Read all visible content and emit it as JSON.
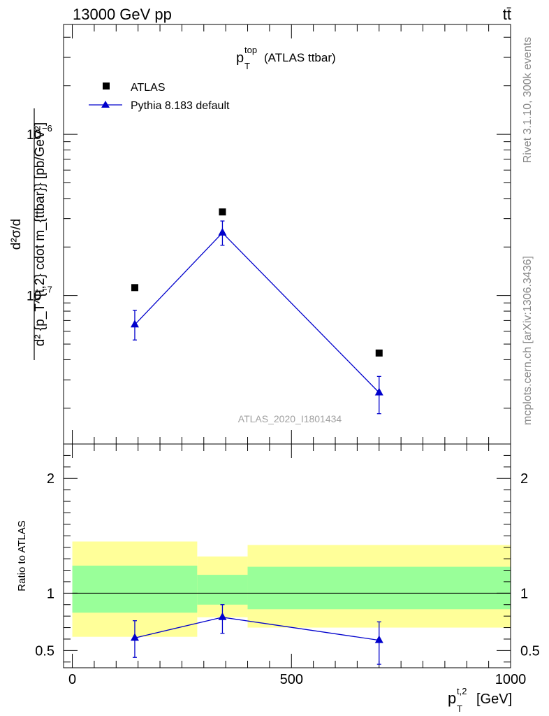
{
  "header": {
    "left": "13000 GeV pp",
    "right": "tt̄"
  },
  "side_labels": {
    "rivet": "Rivet 3.1.10,  300k events",
    "mcplots": "mcplots.cern.ch [arXiv:1306.3436]"
  },
  "chart_data": [
    {
      "type": "scatter",
      "panel": "main",
      "title_main": "p",
      "title_sup": "top",
      "title_sub": "T",
      "title_rest": "(ATLAS ttbar)",
      "watermark": "ATLAS_2020_I1801434",
      "yscale": "log",
      "ylim": [
        1.2e-08,
        4.8e-06
      ],
      "xlim": [
        -20,
        1000
      ],
      "ylabel": "d^2 sigma / d^2 {p_T^{t,2} cdot m_{ttbar}} [pb/GeV^2]",
      "ytick_labels": [
        {
          "base": "10",
          "exp": "−6",
          "value": 1e-06
        },
        {
          "base": "10",
          "exp": "−7",
          "value": 1e-07
        }
      ],
      "legend_position": "top-left",
      "series": [
        {
          "name": "ATLAS",
          "marker": "square",
          "color": "#000000",
          "x": [
            142.5,
            342.5,
            700
          ],
          "y": [
            1.12e-07,
            3.3e-07,
            4.4e-08
          ]
        },
        {
          "name": "Pythia 8.183 default",
          "marker": "triangle",
          "color": "#0000cc",
          "x": [
            142.5,
            342.5,
            700
          ],
          "y": [
            6.6e-08,
            2.45e-07,
            2.5e-08
          ],
          "yerr_low": [
            5.3e-08,
            2.05e-07,
            1.85e-08
          ],
          "yerr_high": [
            8.1e-08,
            2.9e-07,
            3.15e-08
          ]
        }
      ]
    },
    {
      "type": "scatter",
      "panel": "ratio",
      "ylabel": "Ratio to ATLAS",
      "xlabel_main": "p",
      "xlabel_sup": "t,2",
      "xlabel_sub": "T",
      "xlabel_rest": "[GeV]",
      "xlim": [
        -20,
        1000
      ],
      "ylim": [
        0.35,
        2.3
      ],
      "xtick_labels": [
        "0",
        "500",
        "1000"
      ],
      "xticks": [
        0,
        500,
        1000
      ],
      "ytick_labels": [
        "2",
        "1",
        "0.5"
      ],
      "yticks": [
        2,
        1,
        0.5
      ],
      "bands": [
        {
          "xlo": 0,
          "xhi": 285,
          "yellow_lo": 0.62,
          "yellow_hi": 1.45,
          "green_lo": 0.83,
          "green_hi": 1.24
        },
        {
          "xlo": 285,
          "xhi": 400,
          "yellow_lo": 0.79,
          "yellow_hi": 1.32,
          "green_lo": 0.9,
          "green_hi": 1.16
        },
        {
          "xlo": 400,
          "xhi": 1000,
          "yellow_lo": 0.7,
          "yellow_hi": 1.42,
          "green_lo": 0.86,
          "green_hi": 1.23
        }
      ],
      "band_colors": {
        "yellow": "#ffff99",
        "green": "#99ff99"
      },
      "series": [
        {
          "name": "Pythia 8.183 default",
          "color": "#0000cc",
          "x": [
            142.5,
            342.5,
            700
          ],
          "y": [
            0.61,
            0.79,
            0.59
          ],
          "yerr_low": [
            0.44,
            0.65,
            0.38
          ],
          "yerr_high": [
            0.76,
            0.9,
            0.75
          ]
        }
      ]
    }
  ]
}
